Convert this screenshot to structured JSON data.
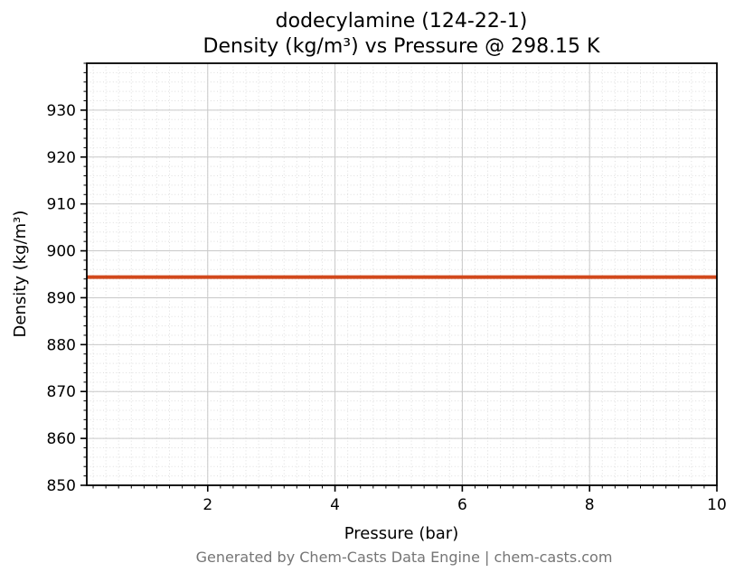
{
  "footer": "Generated by Chem-Casts Data Engine | chem-casts.com",
  "chart_data": {
    "type": "line",
    "title": "dodecylamine (124-22-1)\nDensity (kg/m³) vs Pressure @ 298.15 K",
    "title_lines": [
      "dodecylamine (124-22-1)",
      "Density (kg/m³) vs Pressure @ 298.15 K"
    ],
    "xlabel": "Pressure (bar)",
    "ylabel": "Density (kg/m³)",
    "xlim": [
      0.1,
      10
    ],
    "ylim": [
      850,
      940
    ],
    "xticks": [
      2,
      4,
      6,
      8,
      10
    ],
    "yticks": [
      850,
      860,
      870,
      880,
      890,
      900,
      910,
      920,
      930
    ],
    "x_minor_step": 0.2,
    "y_minor_step": 2,
    "grid": true,
    "legend": "none",
    "line_color": "#d2491c",
    "line_width": 4,
    "series": [
      {
        "name": "density",
        "x": [
          0.1,
          10
        ],
        "y": [
          894.4,
          894.4
        ]
      }
    ]
  }
}
